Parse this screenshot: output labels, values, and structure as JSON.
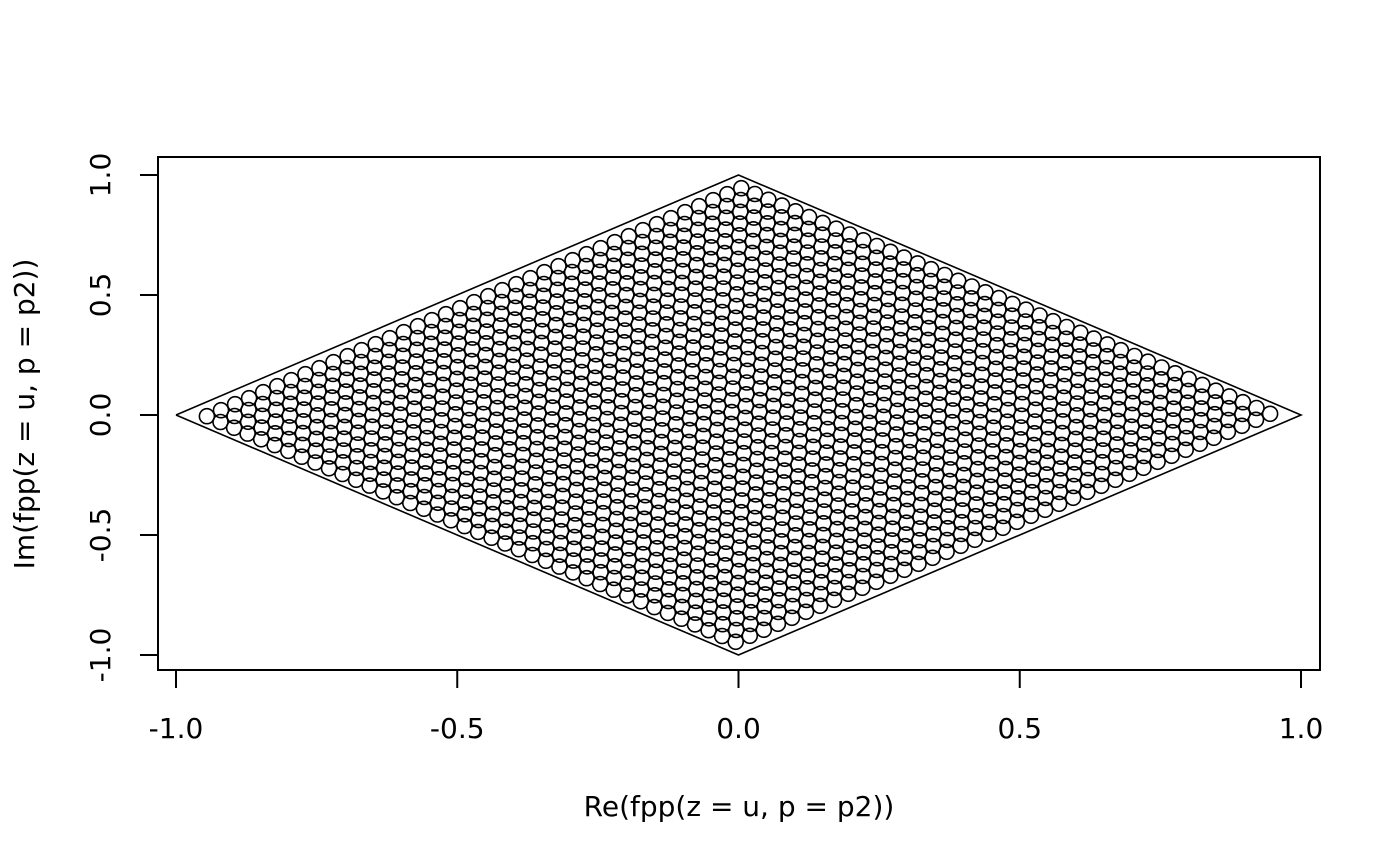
{
  "chart_data": {
    "type": "scatter",
    "title": "",
    "xlabel": "Re(fpp(z = u, p = p2))",
    "ylabel": "Im(fpp(z = u, p = p2))",
    "xlim": [
      -1.0,
      1.0
    ],
    "ylim": [
      -1.0,
      1.0
    ],
    "x_ticks": [
      "-1.0",
      "-0.5",
      "0.0",
      "0.5",
      "1.0"
    ],
    "y_ticks": [
      "-1.0",
      "-0.5",
      "0.0",
      "0.5",
      "1.0"
    ],
    "grid": false,
    "legend": "none",
    "marker": "open circle",
    "colors": {
      "marks": "#000000",
      "background": "#ffffff"
    },
    "boundary": {
      "type": "polygon",
      "x": [
        -1.0,
        0.0,
        1.0,
        0.0,
        -1.0
      ],
      "y": [
        0.0,
        1.0,
        0.0,
        -1.0,
        0.0
      ]
    },
    "series": [
      {
        "pattern": "grid of points filling the rhombus |x| + |y| <= 1, in diagonal rows running from upper-left to lower-right",
        "row_count": 39,
        "points_per_row": 40,
        "row_spacing": 0.05,
        "margin": 0.03
      }
    ]
  }
}
